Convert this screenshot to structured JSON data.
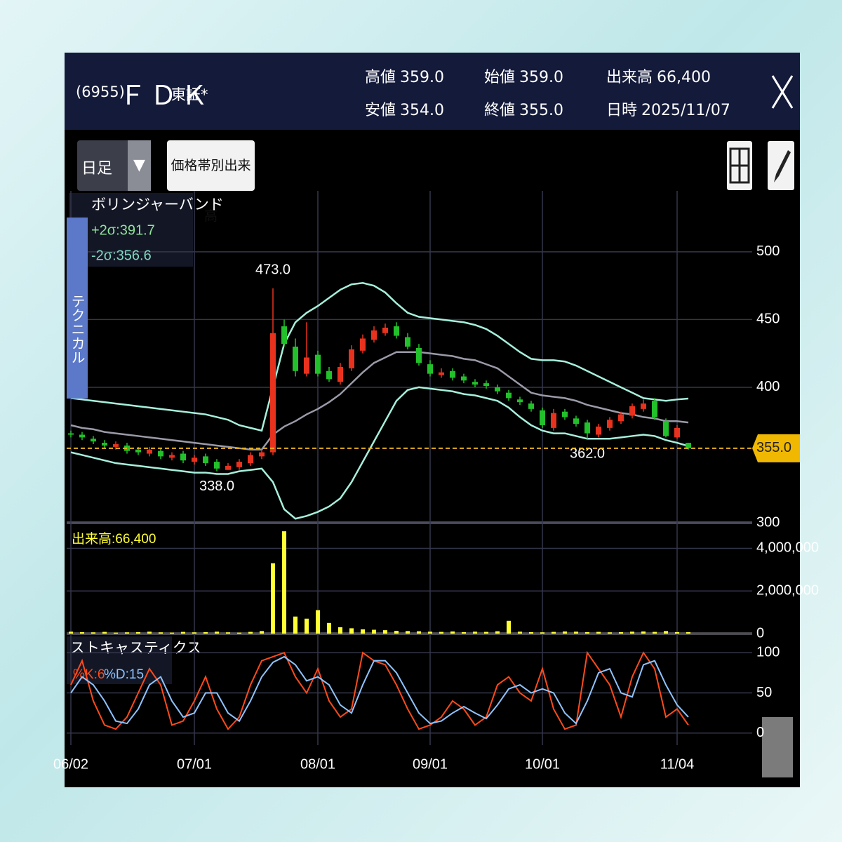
{
  "header": {
    "code": "(6955)",
    "name": "ＦＤＫ",
    "market": "東証*",
    "stats": [
      {
        "label": "高値",
        "value": "359.0"
      },
      {
        "label": "始値",
        "value": "359.0"
      },
      {
        "label": "出来高",
        "value": "66,400"
      },
      {
        "label": "安値",
        "value": "354.0"
      },
      {
        "label": "終値",
        "value": "355.0"
      },
      {
        "label": "日時",
        "value": "2025/11/07"
      }
    ]
  },
  "toolbar": {
    "period": "日足",
    "volume_button": "価格帯別出来高"
  },
  "side_tab": "テクニカル",
  "chart_data": [
    {
      "type": "candlestick",
      "title": "ボリンジャーバンド",
      "categories": [
        "06/02",
        null,
        null,
        null,
        null,
        null,
        null,
        null,
        null,
        null,
        null,
        "07/01",
        null,
        null,
        null,
        null,
        null,
        null,
        null,
        null,
        null,
        null,
        "08/01",
        null,
        null,
        null,
        null,
        null,
        null,
        null,
        null,
        null,
        "09/01",
        null,
        null,
        null,
        null,
        null,
        null,
        null,
        null,
        null,
        "10/01",
        null,
        null,
        null,
        null,
        null,
        null,
        null,
        null,
        null,
        null,
        null,
        "11/04",
        null
      ],
      "open": [
        366,
        365,
        362,
        359,
        356,
        357,
        354,
        351,
        353,
        348,
        351,
        345,
        349,
        345,
        339,
        341,
        344,
        349,
        352,
        445,
        430,
        410,
        424,
        412,
        404,
        414,
        427,
        435,
        440,
        445,
        437,
        429,
        417,
        409,
        412,
        408,
        404,
        403,
        400,
        396,
        391,
        388,
        383,
        370,
        382,
        377,
        374,
        365,
        370,
        375,
        379,
        384,
        390,
        375,
        363,
        359
      ],
      "high": [
        368,
        367,
        364,
        361,
        360,
        359,
        356,
        356,
        355,
        352,
        353,
        350,
        351,
        347,
        344,
        347,
        352,
        354,
        473,
        450,
        436,
        448,
        427,
        415,
        418,
        431,
        439,
        445,
        447,
        448,
        440,
        432,
        420,
        414,
        414,
        410,
        406,
        405,
        402,
        398,
        393,
        390,
        385,
        384,
        384,
        379,
        376,
        373,
        378,
        382,
        388,
        391,
        392,
        377,
        372,
        359
      ],
      "low": [
        363,
        361,
        358,
        355,
        354,
        351,
        350,
        349,
        347,
        346,
        344,
        343,
        342,
        338,
        339,
        339,
        342,
        347,
        350,
        430,
        408,
        408,
        408,
        404,
        402,
        412,
        425,
        433,
        438,
        436,
        428,
        416,
        408,
        407,
        405,
        403,
        400,
        399,
        395,
        390,
        387,
        382,
        370,
        368,
        376,
        371,
        362,
        363,
        368,
        373,
        377,
        382,
        376,
        363,
        362,
        354
      ],
      "close": [
        365,
        363,
        360,
        357,
        358,
        353,
        352,
        354,
        349,
        350,
        346,
        348,
        344,
        340,
        342,
        345,
        350,
        352,
        440,
        432,
        412,
        422,
        410,
        406,
        415,
        428,
        436,
        442,
        444,
        438,
        430,
        418,
        410,
        411,
        407,
        405,
        402,
        401,
        397,
        392,
        389,
        384,
        372,
        381,
        378,
        373,
        366,
        371,
        376,
        380,
        386,
        388,
        378,
        364,
        370,
        355
      ],
      "up_color": "#e8321e",
      "down_color": "#22c02a",
      "bands": [
        {
          "label": "+2σ:391.7",
          "color": "#a6f0dc",
          "label_color": "#8fe59a",
          "values": [
            392,
            391,
            390,
            389,
            388,
            387,
            386,
            385,
            384,
            383,
            382,
            381,
            380,
            378,
            376,
            372,
            370,
            368,
            400,
            432,
            448,
            455,
            460,
            466,
            472,
            476,
            477,
            475,
            470,
            462,
            455,
            452,
            451,
            450,
            449,
            448,
            446,
            443,
            438,
            432,
            426,
            421,
            420,
            420,
            419,
            416,
            412,
            408,
            404,
            400,
            396,
            392,
            391,
            390,
            391,
            391.7
          ]
        },
        {
          "color": "#9a9aa8",
          "values": [
            372,
            370,
            369,
            367,
            366,
            365,
            364,
            363,
            362,
            361,
            360,
            359,
            358,
            357,
            356,
            355,
            354,
            354,
            365,
            371,
            375,
            380,
            384,
            389,
            395,
            403,
            411,
            418,
            422,
            426,
            426,
            426,
            425,
            424,
            423,
            421,
            420,
            417,
            414,
            408,
            402,
            396,
            394,
            393,
            392,
            390,
            387,
            385,
            383,
            381,
            380,
            378,
            377,
            375,
            375,
            374
          ]
        },
        {
          "label": "-2σ:356.6",
          "color": "#a6f0dc",
          "label_color": "#7fd8c0",
          "values": [
            352,
            350,
            348,
            346,
            344,
            343,
            342,
            341,
            340,
            339,
            338,
            337,
            337,
            336,
            336,
            338,
            339,
            340,
            330,
            310,
            303,
            305,
            308,
            312,
            318,
            330,
            345,
            360,
            375,
            390,
            398,
            400,
            399,
            398,
            397,
            395,
            394,
            392,
            390,
            385,
            378,
            372,
            368,
            366,
            366,
            364,
            362,
            362,
            362,
            363,
            364,
            365,
            364,
            361,
            359,
            356.6
          ]
        }
      ],
      "annotations": [
        {
          "value": 473,
          "label": "473.0"
        },
        {
          "value": 338,
          "label": "338.0"
        },
        {
          "value": 362,
          "label": "362.0"
        }
      ],
      "current": {
        "value": 355,
        "label": "355.0"
      },
      "ylim": [
        300,
        545
      ],
      "yticks": [
        300,
        400,
        450,
        500
      ]
    },
    {
      "type": "bar",
      "title": "出来高:66,400",
      "color": "#ffff33",
      "values": [
        90000,
        70000,
        60000,
        80000,
        50000,
        60000,
        70000,
        90000,
        60000,
        50000,
        80000,
        60000,
        70000,
        90000,
        60000,
        50000,
        80000,
        120000,
        3300000,
        4800000,
        800000,
        700000,
        1100000,
        500000,
        300000,
        250000,
        200000,
        180000,
        160000,
        130000,
        120000,
        110000,
        90000,
        80000,
        100000,
        70000,
        90000,
        80000,
        110000,
        600000,
        90000,
        70000,
        60000,
        80000,
        100000,
        90000,
        70000,
        80000,
        60000,
        70000,
        90000,
        100000,
        80000,
        120000,
        70000,
        66400
      ],
      "ylim": [
        0,
        5200000
      ],
      "yticks": [
        0,
        {
          "value": 2000000,
          "label": "2,000,000"
        },
        {
          "value": 4000000,
          "label": "4,000,000"
        }
      ]
    },
    {
      "type": "line",
      "title": "ストキャスティクス",
      "series": [
        {
          "name": "%K:6",
          "color": "#ff4a1a",
          "values": [
            60,
            90,
            40,
            10,
            5,
            20,
            50,
            80,
            60,
            10,
            15,
            40,
            70,
            30,
            5,
            20,
            60,
            90,
            95,
            100,
            70,
            50,
            80,
            40,
            20,
            30,
            100,
            90,
            85,
            60,
            30,
            5,
            10,
            20,
            40,
            30,
            10,
            20,
            60,
            70,
            50,
            40,
            80,
            30,
            5,
            10,
            100,
            80,
            60,
            20,
            70,
            100,
            80,
            20,
            30,
            10
          ]
        },
        {
          "name": "%D:15",
          "color": "#8fc3ff",
          "values": [
            50,
            70,
            60,
            40,
            15,
            12,
            30,
            60,
            70,
            40,
            20,
            25,
            50,
            50,
            25,
            15,
            40,
            70,
            88,
            95,
            85,
            65,
            70,
            60,
            35,
            25,
            60,
            90,
            90,
            75,
            50,
            25,
            12,
            15,
            25,
            33,
            25,
            18,
            35,
            55,
            60,
            50,
            55,
            50,
            25,
            12,
            40,
            75,
            80,
            50,
            45,
            85,
            90,
            60,
            35,
            20
          ]
        }
      ],
      "ylim": [
        -15,
        122
      ],
      "yticks": [
        0,
        50,
        100
      ]
    }
  ]
}
